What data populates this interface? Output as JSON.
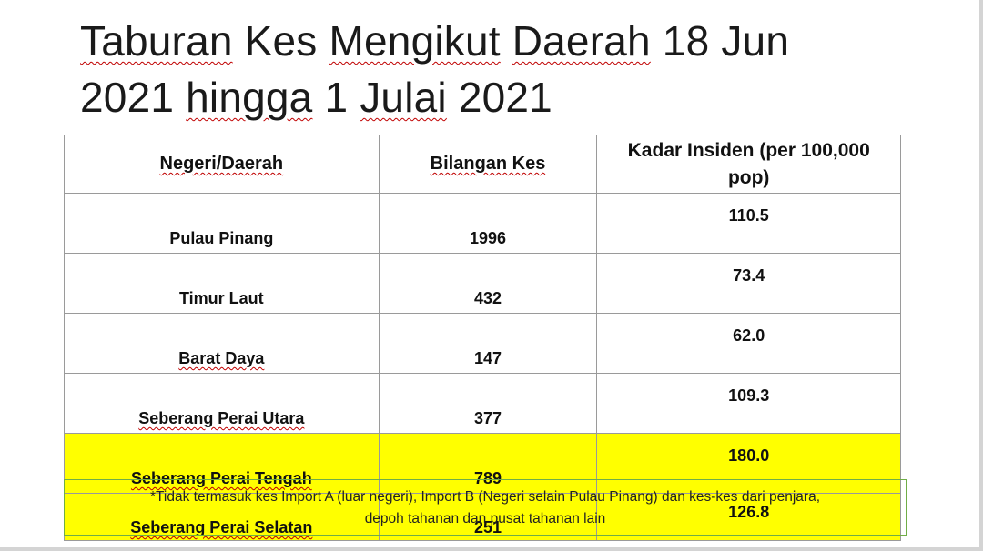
{
  "title": {
    "w1": "Taburan",
    "w2": "Kes",
    "w3": "Mengikut",
    "w4": "Daerah",
    "w5": "18 Jun",
    "w6": "2021",
    "w7": "hingga",
    "w8": "1",
    "w9": "Julai",
    "w10": "2021"
  },
  "table": {
    "headers": {
      "col1": "Negeri/Daerah",
      "col2": "Bilangan Kes",
      "col3_line1": "Kadar Insiden (per 100,000",
      "col3_line2": "pop)"
    },
    "rows": [
      {
        "region": "Pulau Pinang",
        "cases": "1996",
        "rate": "110.5",
        "highlight": false
      },
      {
        "region": "Timur Laut",
        "cases": "432",
        "rate": "73.4",
        "highlight": false
      },
      {
        "region": "Barat Daya",
        "cases": "147",
        "rate": "62.0",
        "highlight": false
      },
      {
        "region": "Seberang Perai Utara",
        "cases": "377",
        "rate": "109.3",
        "highlight": false
      },
      {
        "region": "Seberang Perai Tengah",
        "cases": "789",
        "rate": "180.0",
        "highlight": true
      },
      {
        "region": "Seberang Perai Selatan",
        "cases": "251",
        "rate": "126.8",
        "highlight": true
      }
    ]
  },
  "note": {
    "line1": "*Tidak termasuk kes Import A (luar negeri), Import B (Negeri selain Pulau Pinang) dan kes-kes dari penjara,",
    "line2": "depoh tahanan dan pusat tahanan lain"
  },
  "colors": {
    "highlight": "#ffff00",
    "note_border": "#70ad47",
    "spellcheck": "#c00000"
  }
}
